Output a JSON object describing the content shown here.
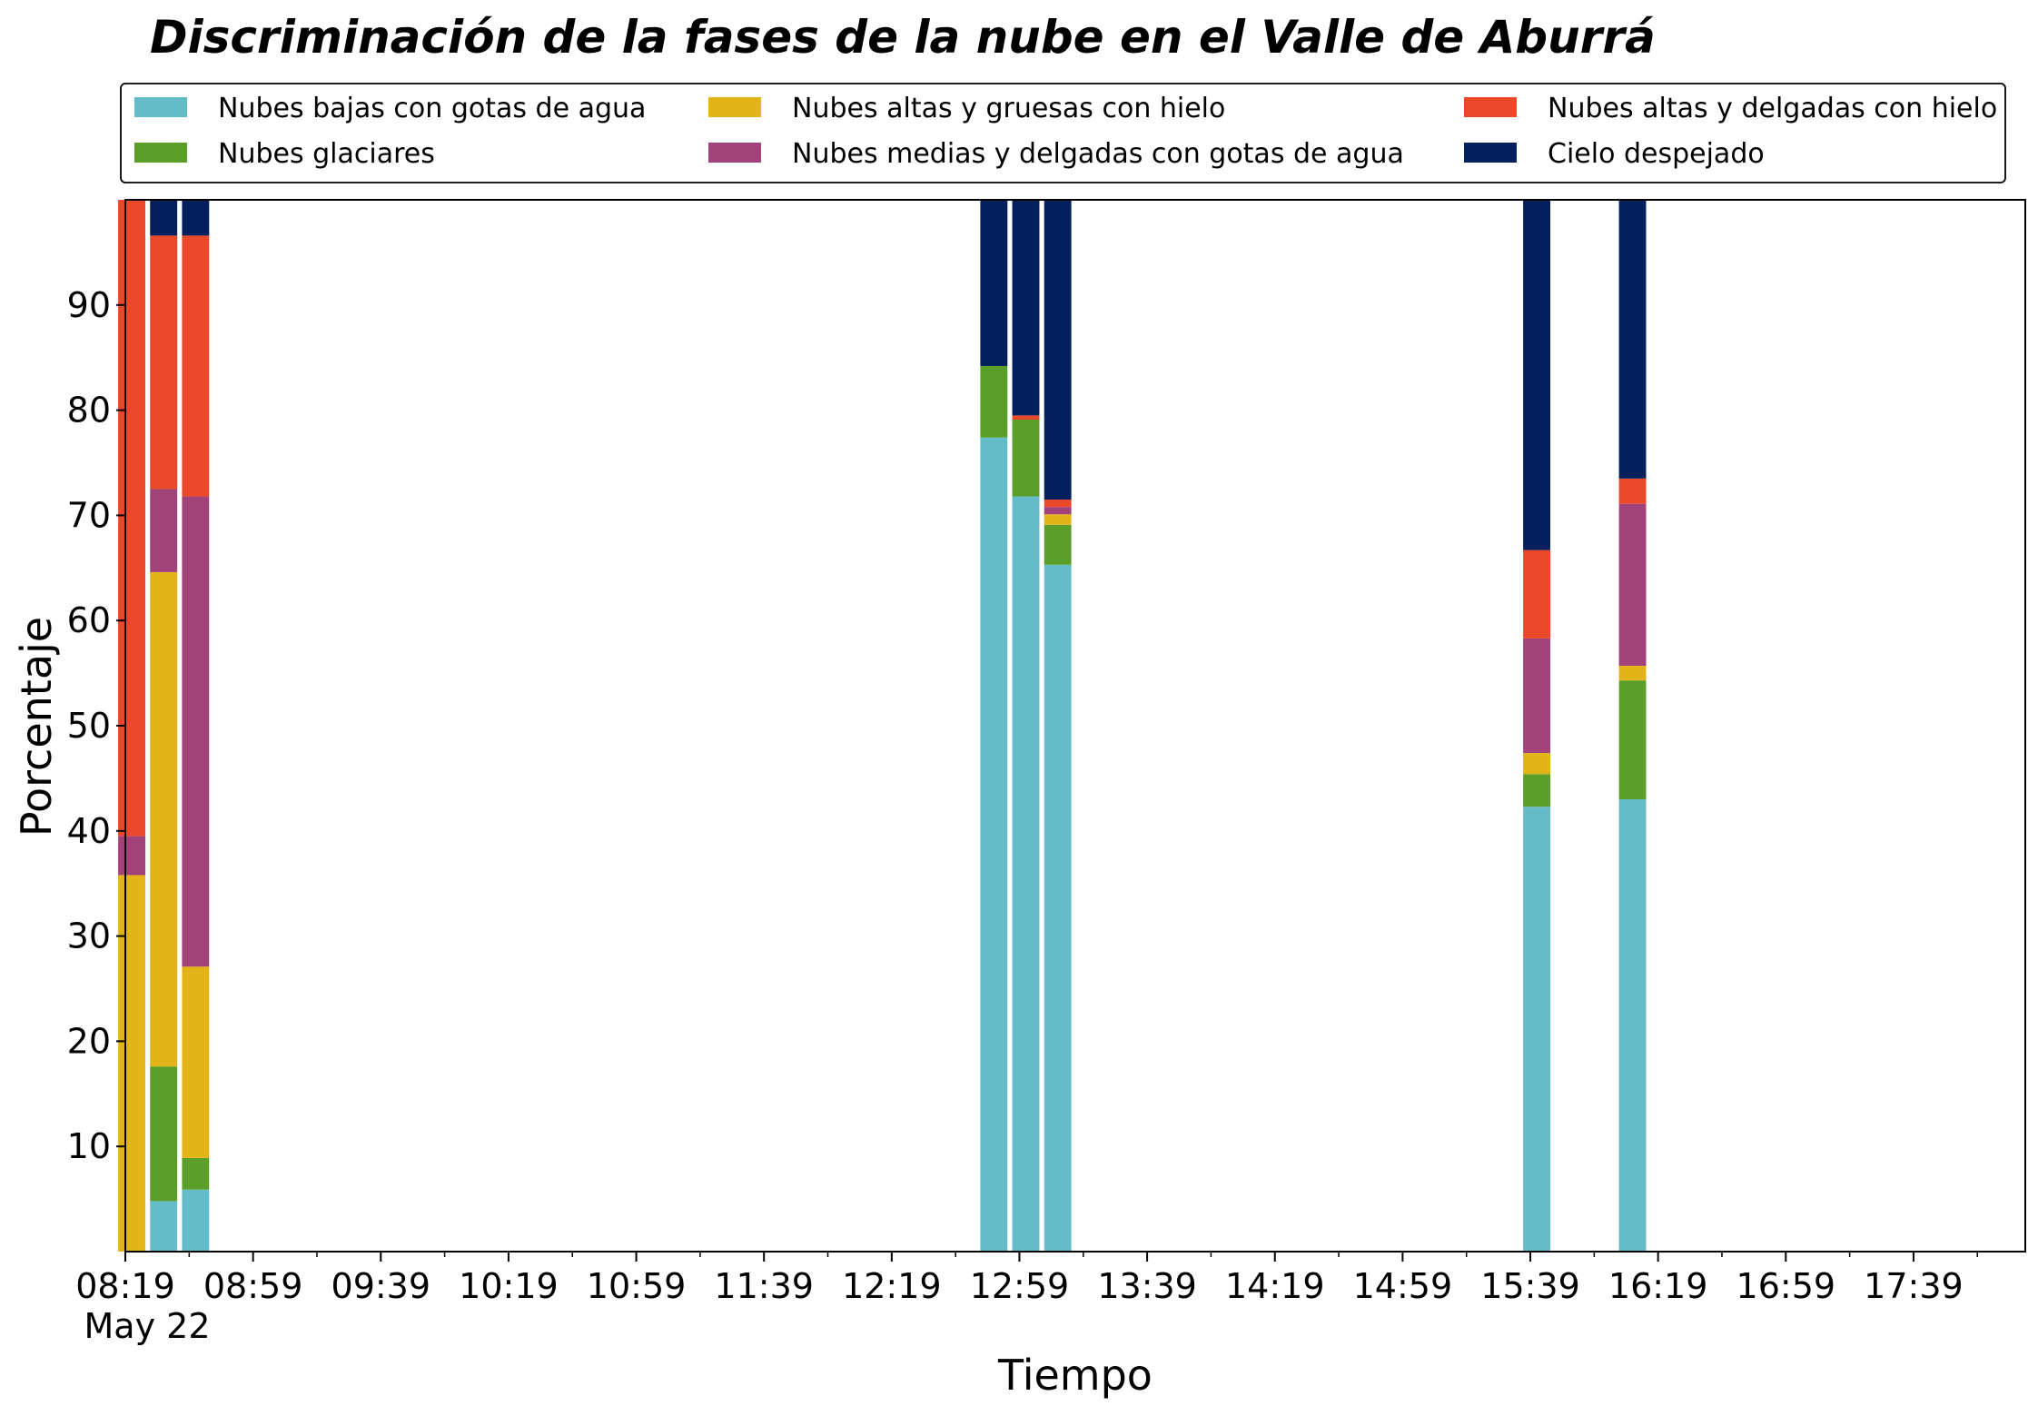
{
  "chart_data": {
    "type": "bar",
    "stacked": true,
    "title": "Discriminación de la fases de la nube en el Valle de Aburrá",
    "xlabel": "Tiempo",
    "ylabel": "Porcentaje",
    "ylim": [
      0,
      100
    ],
    "yticks": [
      10,
      20,
      30,
      40,
      50,
      60,
      70,
      80,
      90
    ],
    "x_start_minutes": 499,
    "x_end_minutes": 1094,
    "x_tick_minutes": [
      499,
      539,
      579,
      619,
      659,
      699,
      739,
      779,
      819,
      859,
      899,
      939,
      979,
      1019,
      1059
    ],
    "x_tick_labels": [
      "08:19",
      "08:59",
      "09:39",
      "10:19",
      "10:59",
      "11:39",
      "12:19",
      "12:59",
      "13:39",
      "14:19",
      "14:59",
      "15:39",
      "16:19",
      "16:59",
      "17:39"
    ],
    "x_minor_tick_minutes": [
      519,
      559,
      599,
      639,
      679,
      719,
      759,
      799,
      839,
      879,
      919,
      959,
      999,
      1039,
      1079
    ],
    "date_label": "May 22",
    "bar_width_minutes": 8.5,
    "categories": [
      "08:20",
      "08:30",
      "08:40",
      "12:50",
      "13:00",
      "13:10",
      "15:40",
      "16:10"
    ],
    "x": [
      501,
      511,
      521,
      771,
      781,
      791,
      941,
      971
    ],
    "grid": false,
    "legend_position": "top",
    "series": [
      {
        "name": "Nubes bajas con gotas de agua",
        "color": "#64BCC8",
        "values": [
          0,
          4.8,
          5.9,
          77.4,
          71.8,
          65.3,
          42.3,
          43.0
        ]
      },
      {
        "name": "Nubes glaciares",
        "color": "#5B9F2A",
        "values": [
          0,
          12.8,
          3.0,
          6.8,
          7.3,
          3.8,
          3.1,
          11.3
        ]
      },
      {
        "name": "Nubes altas y gruesas con hielo",
        "color": "#E3B418",
        "values": [
          35.8,
          47.0,
          18.2,
          0,
          0,
          1.0,
          2.0,
          1.4
        ]
      },
      {
        "name": "Nubes medias y delgadas con gotas de agua",
        "color": "#A1437A",
        "values": [
          3.7,
          7.9,
          44.7,
          0,
          0,
          0.7,
          10.9,
          15.4
        ]
      },
      {
        "name": "Nubes altas y delgadas con hielo",
        "color": "#EB482A",
        "values": [
          60.5,
          24.1,
          24.8,
          0,
          0.4,
          0.7,
          8.4,
          2.4
        ]
      },
      {
        "name": "Cielo despejado",
        "color": "#031F5C",
        "values": [
          0,
          3.4,
          3.4,
          15.8,
          20.5,
          28.5,
          33.3,
          26.5
        ]
      }
    ]
  }
}
